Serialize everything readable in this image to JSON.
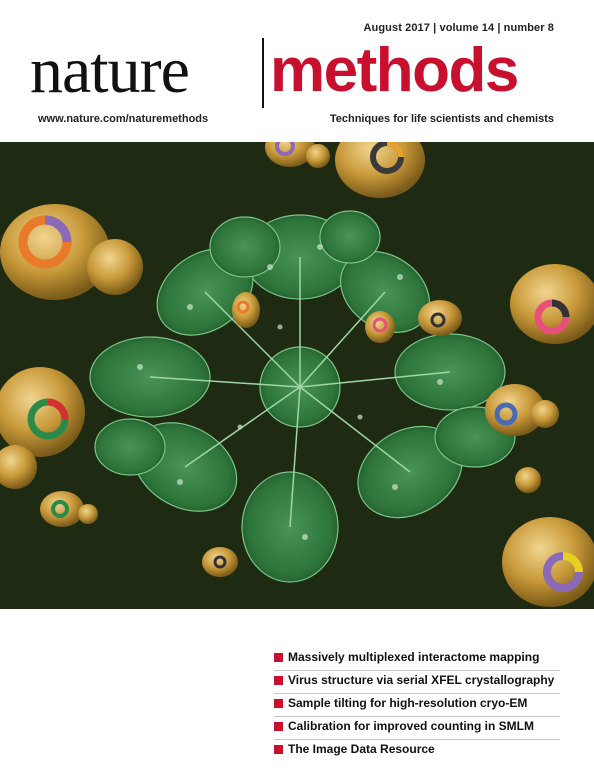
{
  "issue_info": "August 2017 | volume 14 | number 8",
  "masthead": {
    "nature": "nature",
    "methods": "methods"
  },
  "url": "www.nature.com/naturemethods",
  "tagline": "Techniques for life scientists and chemists",
  "cover_lines": [
    "Massively multiplexed interactome mapping",
    "Virus structure via serial XFEL crystallography",
    "Sample tilting for high-resolution cryo-EM",
    "Calibration for improved counting in SMLM",
    "The Image Data Resource"
  ],
  "colors": {
    "brand_red": "#c8102e",
    "background_dark": "#1e2a12",
    "leaf_green": "#2f7a3e",
    "cell_gold": "#c99a3a"
  }
}
